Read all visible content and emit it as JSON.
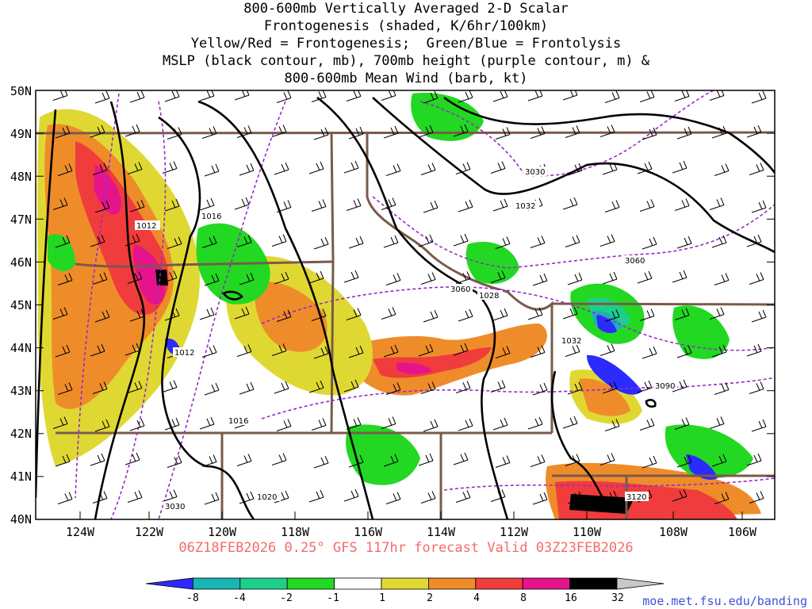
{
  "title": {
    "line1": "800-600mb Vertically Averaged 2-D Scalar",
    "line2": "Frontogenesis (shaded, K/6hr/100km)",
    "line3": "Yellow/Red = Frontogenesis;  Green/Blue = Frontolysis",
    "line4": "MSLP (black contour, mb), 700mb height (purple contour, m) &",
    "line5": "800-600mb Mean Wind (barb, kt)"
  },
  "axes": {
    "lat_labels": [
      "50N",
      "49N",
      "48N",
      "47N",
      "46N",
      "45N",
      "44N",
      "43N",
      "42N",
      "41N",
      "40N"
    ],
    "lon_labels": [
      "124W",
      "122W",
      "120W",
      "118W",
      "116W",
      "114W",
      "112W",
      "110W",
      "108W",
      "106W"
    ]
  },
  "map": {
    "extent": {
      "lon_min": -125,
      "lon_max": -105,
      "lat_min": 40,
      "lat_max": 50
    },
    "mslp_labels": [
      "1012",
      "1016",
      "1012",
      "1016",
      "1020",
      "1028",
      "1032",
      "1032"
    ],
    "height_labels": [
      "3030",
      "3060",
      "3060",
      "3090",
      "3120",
      "3030"
    ]
  },
  "valid_line": "06Z18FEB2026 0.25° GFS 117hr forecast Valid 03Z23FEB2026",
  "colorbar": {
    "labels": [
      "-8",
      "-4",
      "-2",
      "-1",
      "1",
      "2",
      "4",
      "8",
      "16",
      "32"
    ],
    "colors": [
      "#2b2bff",
      "#19b4b4",
      "#1ecf8c",
      "#22d822",
      "#ffffff",
      "#e0d832",
      "#ef8c2a",
      "#f03c3c",
      "#e6148c",
      "#000000",
      "#c8c8c8"
    ]
  },
  "colors": {
    "mslp": "#000000",
    "height": "#9a28c8",
    "borders": "#7a5a4a",
    "valid_text": "#f26b6b",
    "credit": "#3f51d8"
  },
  "credit": "moe.met.fsu.edu/banding"
}
